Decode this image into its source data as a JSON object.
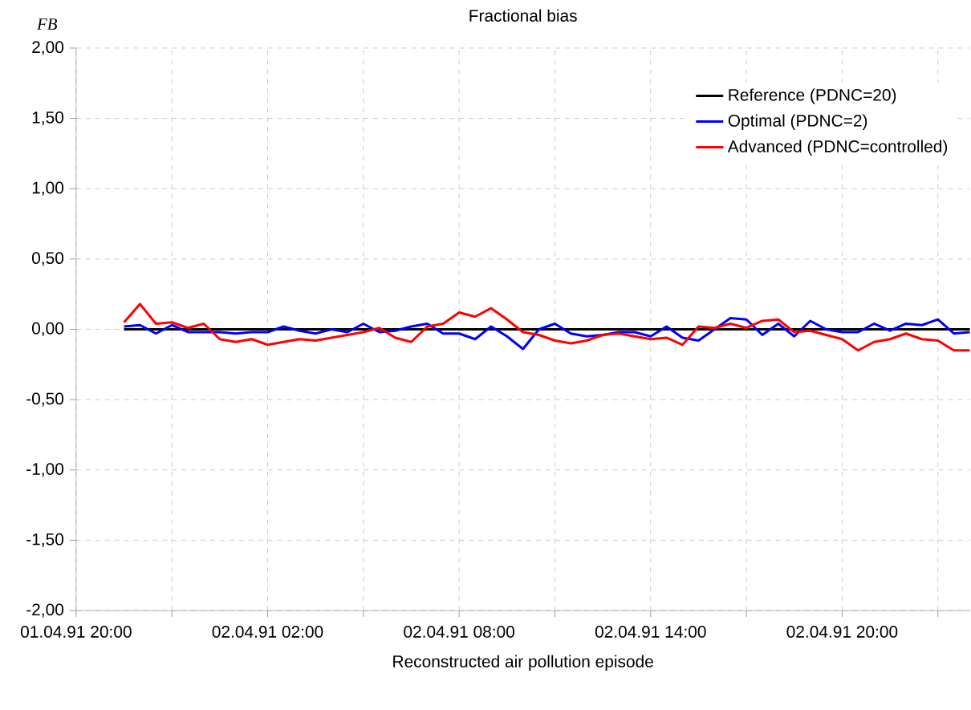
{
  "chart_data": {
    "type": "line",
    "title": "Fractional bias",
    "xlabel": "Reconstructed air pollution episode",
    "ylabel": "FB",
    "x": [
      "1991-04-01T21:30",
      "1991-04-01T22:00",
      "1991-04-01T22:30",
      "1991-04-01T23:00",
      "1991-04-01T23:30",
      "1991-04-02T00:00",
      "1991-04-02T00:30",
      "1991-04-02T01:00",
      "1991-04-02T01:30",
      "1991-04-02T02:00",
      "1991-04-02T02:30",
      "1991-04-02T03:00",
      "1991-04-02T03:30",
      "1991-04-02T04:00",
      "1991-04-02T04:30",
      "1991-04-02T05:00",
      "1991-04-02T05:30",
      "1991-04-02T06:00",
      "1991-04-02T06:30",
      "1991-04-02T07:00",
      "1991-04-02T07:30",
      "1991-04-02T08:00",
      "1991-04-02T08:30",
      "1991-04-02T09:00",
      "1991-04-02T09:30",
      "1991-04-02T10:00",
      "1991-04-02T10:30",
      "1991-04-02T11:00",
      "1991-04-02T11:30",
      "1991-04-02T12:00",
      "1991-04-02T12:30",
      "1991-04-02T13:00",
      "1991-04-02T13:30",
      "1991-04-02T14:00",
      "1991-04-02T14:30",
      "1991-04-02T15:00",
      "1991-04-02T15:30",
      "1991-04-02T16:00",
      "1991-04-02T16:30",
      "1991-04-02T17:00",
      "1991-04-02T17:30",
      "1991-04-02T18:00",
      "1991-04-02T18:30",
      "1991-04-02T19:00",
      "1991-04-02T19:30",
      "1991-04-02T20:00",
      "1991-04-02T20:30",
      "1991-04-02T21:00",
      "1991-04-02T21:30",
      "1991-04-02T22:00",
      "1991-04-02T22:30",
      "1991-04-02T23:00",
      "1991-04-02T23:30",
      "1991-04-03T00:00"
    ],
    "series": [
      {
        "name": "Reference (PDNC=20)",
        "color": "#000000",
        "values": [
          0,
          0,
          0,
          0,
          0,
          0,
          0,
          0,
          0,
          0,
          0,
          0,
          0,
          0,
          0,
          0,
          0,
          0,
          0,
          0,
          0,
          0,
          0,
          0,
          0,
          0,
          0,
          0,
          0,
          0,
          0,
          0,
          0,
          0,
          0,
          0,
          0,
          0,
          0,
          0,
          0,
          0,
          0,
          0,
          0,
          0,
          0,
          0,
          0,
          0,
          0,
          0,
          0,
          0
        ]
      },
      {
        "name": "Optimal (PDNC=2)",
        "color": "#0000ff",
        "values": [
          0.02,
          0.03,
          -0.03,
          0.03,
          -0.02,
          -0.02,
          -0.02,
          -0.03,
          -0.02,
          -0.02,
          0.02,
          -0.01,
          -0.03,
          0.0,
          -0.02,
          0.04,
          -0.02,
          -0.01,
          0.02,
          0.04,
          -0.03,
          -0.03,
          -0.07,
          0.02,
          -0.05,
          -0.14,
          0.0,
          0.04,
          -0.03,
          -0.05,
          -0.04,
          -0.02,
          -0.02,
          -0.05,
          0.02,
          -0.06,
          -0.08,
          0.0,
          0.08,
          0.07,
          -0.04,
          0.04,
          -0.05,
          0.06,
          0.0,
          -0.02,
          -0.02,
          0.04,
          -0.01,
          0.04,
          0.03,
          0.07,
          -0.03,
          -0.02
        ]
      },
      {
        "name": "Advanced (PDNC=controlled)",
        "color": "#ff0000",
        "values": [
          0.05,
          0.18,
          0.04,
          0.05,
          0.01,
          0.04,
          -0.07,
          -0.09,
          -0.07,
          -0.11,
          -0.09,
          -0.07,
          -0.08,
          -0.06,
          -0.04,
          -0.02,
          0.01,
          -0.06,
          -0.09,
          0.02,
          0.04,
          0.12,
          0.09,
          0.15,
          0.07,
          -0.02,
          -0.04,
          -0.08,
          -0.1,
          -0.08,
          -0.04,
          -0.03,
          -0.05,
          -0.07,
          -0.06,
          -0.11,
          0.02,
          0.01,
          0.04,
          0.01,
          0.06,
          0.07,
          -0.02,
          -0.01,
          -0.04,
          -0.07,
          -0.15,
          -0.09,
          -0.07,
          -0.03,
          -0.07,
          -0.08,
          -0.15,
          -0.15
        ]
      }
    ],
    "xlim": [
      "1991-04-01T20:00",
      "1991-04-03T00:00"
    ],
    "xticks": [
      {
        "value": "1991-04-01T20:00",
        "label": "01.04.91 20:00"
      },
      {
        "value": "1991-04-01T23:00",
        "label": null
      },
      {
        "value": "1991-04-02T02:00",
        "label": "02.04.91 02:00"
      },
      {
        "value": "1991-04-02T05:00",
        "label": null
      },
      {
        "value": "1991-04-02T08:00",
        "label": "02.04.91 08:00"
      },
      {
        "value": "1991-04-02T11:00",
        "label": null
      },
      {
        "value": "1991-04-02T14:00",
        "label": "02.04.91 14:00"
      },
      {
        "value": "1991-04-02T17:00",
        "label": null
      },
      {
        "value": "1991-04-02T20:00",
        "label": "02.04.91 20:00"
      },
      {
        "value": "1991-04-02T23:00",
        "label": null
      }
    ],
    "ylim": [
      -2,
      2
    ],
    "yticks": [
      {
        "value": -2,
        "label": "-2,00"
      },
      {
        "value": -1.5,
        "label": "-1,50"
      },
      {
        "value": -1,
        "label": "-1,00"
      },
      {
        "value": -0.5,
        "label": "-0,50"
      },
      {
        "value": 0,
        "label": "0,00"
      },
      {
        "value": 0.5,
        "label": "0,50"
      },
      {
        "value": 1,
        "label": "1,00"
      },
      {
        "value": 1.5,
        "label": "1,50"
      },
      {
        "value": 2,
        "label": "2,00"
      }
    ],
    "grid": true,
    "legend": "top right",
    "line_style": "solid"
  }
}
